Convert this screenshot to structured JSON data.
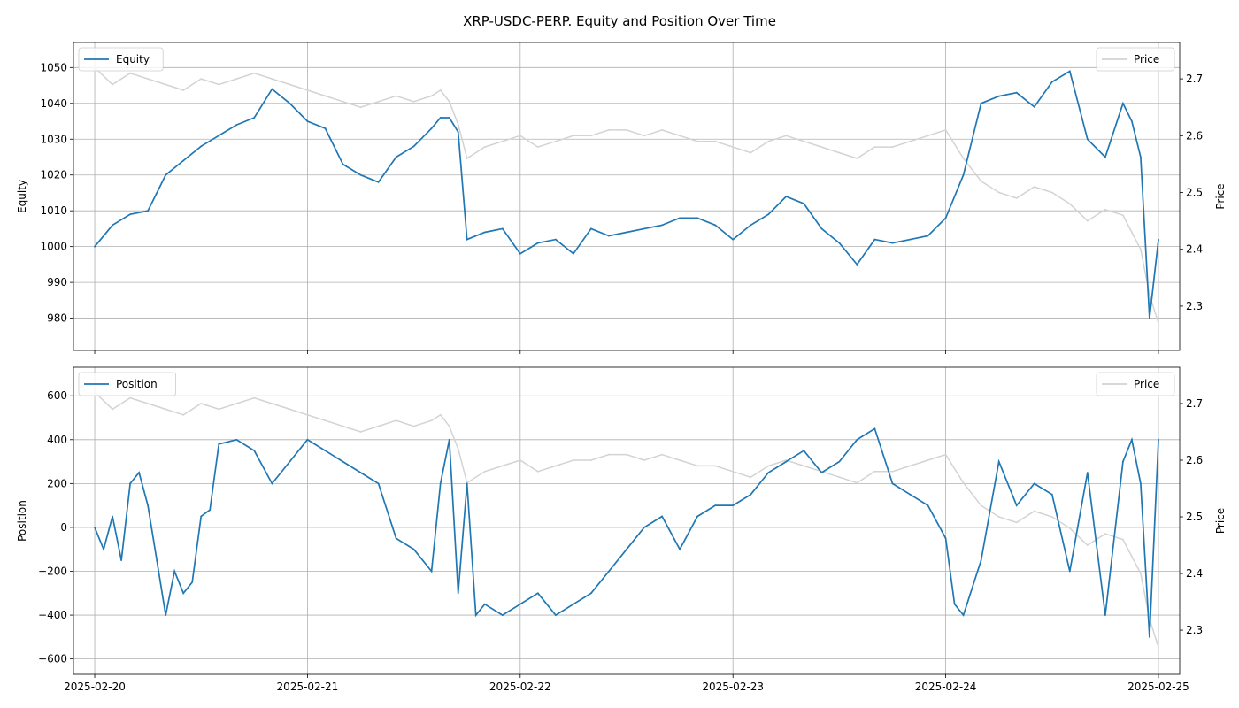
{
  "figure": {
    "title": "XRP-USDC-PERP. Equity and Position Over Time"
  },
  "colors": {
    "equity": "#1f77b4",
    "position": "#1f77b4",
    "price": "#d3d3d3",
    "grid": "#b0b0b0"
  },
  "chart_data": [
    {
      "type": "line",
      "ylabel": "Equity",
      "ylabel_right": "Price",
      "legend_left": "top-left",
      "legend_right": "top-right",
      "grid": true,
      "xlim": [
        "2025-02-19T21:36",
        "2025-02-25T02:24"
      ],
      "x_ticks": [
        "2025-02-20",
        "2025-02-21",
        "2025-02-22",
        "2025-02-23",
        "2025-02-24",
        "2025-02-25"
      ],
      "ylim": [
        971,
        1057
      ],
      "y_ticks": [
        980,
        990,
        1000,
        1010,
        1020,
        1030,
        1040,
        1050
      ],
      "y2lim": [
        2.222,
        2.764
      ],
      "y2_ticks": [
        2.3,
        2.4,
        2.5,
        2.6,
        2.7
      ],
      "series": [
        {
          "name": "Equity",
          "axis": "left",
          "x": [
            "2025-02-20T00:00",
            "2025-02-20T02:00",
            "2025-02-20T04:00",
            "2025-02-20T06:00",
            "2025-02-20T08:00",
            "2025-02-20T10:00",
            "2025-02-20T12:00",
            "2025-02-20T14:00",
            "2025-02-20T16:00",
            "2025-02-20T18:00",
            "2025-02-20T20:00",
            "2025-02-20T22:00",
            "2025-02-21T00:00",
            "2025-02-21T02:00",
            "2025-02-21T04:00",
            "2025-02-21T06:00",
            "2025-02-21T08:00",
            "2025-02-21T10:00",
            "2025-02-21T12:00",
            "2025-02-21T14:00",
            "2025-02-21T15:00",
            "2025-02-21T16:00",
            "2025-02-21T17:00",
            "2025-02-21T18:00",
            "2025-02-21T20:00",
            "2025-02-21T22:00",
            "2025-02-22T00:00",
            "2025-02-22T02:00",
            "2025-02-22T04:00",
            "2025-02-22T06:00",
            "2025-02-22T08:00",
            "2025-02-22T10:00",
            "2025-02-22T12:00",
            "2025-02-22T14:00",
            "2025-02-22T16:00",
            "2025-02-22T18:00",
            "2025-02-22T20:00",
            "2025-02-22T22:00",
            "2025-02-23T00:00",
            "2025-02-23T02:00",
            "2025-02-23T04:00",
            "2025-02-23T06:00",
            "2025-02-23T08:00",
            "2025-02-23T10:00",
            "2025-02-23T12:00",
            "2025-02-23T14:00",
            "2025-02-23T16:00",
            "2025-02-23T18:00",
            "2025-02-23T20:00",
            "2025-02-23T22:00",
            "2025-02-24T00:00",
            "2025-02-24T02:00",
            "2025-02-24T04:00",
            "2025-02-24T06:00",
            "2025-02-24T08:00",
            "2025-02-24T10:00",
            "2025-02-24T12:00",
            "2025-02-24T14:00",
            "2025-02-24T16:00",
            "2025-02-24T18:00",
            "2025-02-24T20:00",
            "2025-02-24T21:00",
            "2025-02-24T22:00",
            "2025-02-24T23:00",
            "2025-02-25T00:00"
          ],
          "values": [
            1000,
            1006,
            1009,
            1010,
            1020,
            1024,
            1028,
            1031,
            1034,
            1036,
            1044,
            1040,
            1035,
            1033,
            1023,
            1020,
            1018,
            1025,
            1028,
            1033,
            1036,
            1036,
            1032,
            1002,
            1004,
            1005,
            998,
            1001,
            1002,
            998,
            1005,
            1003,
            1004,
            1005,
            1006,
            1008,
            1008,
            1006,
            1002,
            1006,
            1009,
            1014,
            1012,
            1005,
            1001,
            995,
            1002,
            1001,
            1002,
            1003,
            1008,
            1020,
            1040,
            1042,
            1043,
            1039,
            1046,
            1049,
            1030,
            1025,
            1040,
            1035,
            1025,
            980,
            1002
          ]
        },
        {
          "name": "Price",
          "axis": "right",
          "x": [
            "2025-02-20T00:00",
            "2025-02-20T02:00",
            "2025-02-20T04:00",
            "2025-02-20T06:00",
            "2025-02-20T08:00",
            "2025-02-20T10:00",
            "2025-02-20T12:00",
            "2025-02-20T14:00",
            "2025-02-20T16:00",
            "2025-02-20T18:00",
            "2025-02-20T20:00",
            "2025-02-20T22:00",
            "2025-02-21T00:00",
            "2025-02-21T02:00",
            "2025-02-21T04:00",
            "2025-02-21T06:00",
            "2025-02-21T08:00",
            "2025-02-21T10:00",
            "2025-02-21T12:00",
            "2025-02-21T14:00",
            "2025-02-21T15:00",
            "2025-02-21T16:00",
            "2025-02-21T17:00",
            "2025-02-21T18:00",
            "2025-02-21T20:00",
            "2025-02-21T22:00",
            "2025-02-22T00:00",
            "2025-02-22T02:00",
            "2025-02-22T04:00",
            "2025-02-22T06:00",
            "2025-02-22T08:00",
            "2025-02-22T10:00",
            "2025-02-22T12:00",
            "2025-02-22T14:00",
            "2025-02-22T16:00",
            "2025-02-22T18:00",
            "2025-02-22T20:00",
            "2025-02-22T22:00",
            "2025-02-23T00:00",
            "2025-02-23T02:00",
            "2025-02-23T04:00",
            "2025-02-23T06:00",
            "2025-02-23T08:00",
            "2025-02-23T10:00",
            "2025-02-23T12:00",
            "2025-02-23T14:00",
            "2025-02-23T16:00",
            "2025-02-23T18:00",
            "2025-02-23T20:00",
            "2025-02-23T22:00",
            "2025-02-24T00:00",
            "2025-02-24T02:00",
            "2025-02-24T04:00",
            "2025-02-24T06:00",
            "2025-02-24T08:00",
            "2025-02-24T10:00",
            "2025-02-24T12:00",
            "2025-02-24T14:00",
            "2025-02-24T16:00",
            "2025-02-24T18:00",
            "2025-02-24T20:00",
            "2025-02-24T21:00",
            "2025-02-24T22:00",
            "2025-02-24T23:00",
            "2025-02-25T00:00"
          ],
          "values": [
            2.72,
            2.69,
            2.71,
            2.7,
            2.69,
            2.68,
            2.7,
            2.69,
            2.7,
            2.71,
            2.7,
            2.69,
            2.68,
            2.67,
            2.66,
            2.65,
            2.66,
            2.67,
            2.66,
            2.67,
            2.68,
            2.66,
            2.62,
            2.56,
            2.58,
            2.59,
            2.6,
            2.58,
            2.59,
            2.6,
            2.6,
            2.61,
            2.61,
            2.6,
            2.61,
            2.6,
            2.59,
            2.59,
            2.58,
            2.57,
            2.59,
            2.6,
            2.59,
            2.58,
            2.57,
            2.56,
            2.58,
            2.58,
            2.59,
            2.6,
            2.61,
            2.56,
            2.52,
            2.5,
            2.49,
            2.51,
            2.5,
            2.48,
            2.45,
            2.47,
            2.46,
            2.43,
            2.4,
            2.32,
            2.27
          ]
        }
      ]
    },
    {
      "type": "line",
      "ylabel": "Position",
      "ylabel_right": "Price",
      "legend_left": "top-left",
      "legend_right": "top-right",
      "grid": true,
      "xlim": [
        "2025-02-19T21:36",
        "2025-02-25T02:24"
      ],
      "x_ticks": [
        "2025-02-20",
        "2025-02-21",
        "2025-02-22",
        "2025-02-23",
        "2025-02-24",
        "2025-02-25"
      ],
      "ylim": [
        -670,
        730
      ],
      "y_ticks": [
        -600,
        -400,
        -200,
        0,
        200,
        400,
        600
      ],
      "y2lim": [
        2.222,
        2.764
      ],
      "y2_ticks": [
        2.3,
        2.4,
        2.5,
        2.6,
        2.7
      ],
      "series": [
        {
          "name": "Position",
          "axis": "left",
          "x": [
            "2025-02-20T00:00",
            "2025-02-20T01:00",
            "2025-02-20T02:00",
            "2025-02-20T03:00",
            "2025-02-20T04:00",
            "2025-02-20T05:00",
            "2025-02-20T06:00",
            "2025-02-20T07:00",
            "2025-02-20T08:00",
            "2025-02-20T09:00",
            "2025-02-20T10:00",
            "2025-02-20T11:00",
            "2025-02-20T12:00",
            "2025-02-20T13:00",
            "2025-02-20T14:00",
            "2025-02-20T16:00",
            "2025-02-20T18:00",
            "2025-02-20T20:00",
            "2025-02-20T22:00",
            "2025-02-21T00:00",
            "2025-02-21T02:00",
            "2025-02-21T04:00",
            "2025-02-21T06:00",
            "2025-02-21T08:00",
            "2025-02-21T10:00",
            "2025-02-21T12:00",
            "2025-02-21T14:00",
            "2025-02-21T15:00",
            "2025-02-21T16:00",
            "2025-02-21T17:00",
            "2025-02-21T18:00",
            "2025-02-21T19:00",
            "2025-02-21T20:00",
            "2025-02-21T22:00",
            "2025-02-22T00:00",
            "2025-02-22T02:00",
            "2025-02-22T04:00",
            "2025-02-22T06:00",
            "2025-02-22T08:00",
            "2025-02-22T10:00",
            "2025-02-22T12:00",
            "2025-02-22T14:00",
            "2025-02-22T16:00",
            "2025-02-22T18:00",
            "2025-02-22T20:00",
            "2025-02-22T22:00",
            "2025-02-23T00:00",
            "2025-02-23T02:00",
            "2025-02-23T04:00",
            "2025-02-23T06:00",
            "2025-02-23T08:00",
            "2025-02-23T10:00",
            "2025-02-23T12:00",
            "2025-02-23T14:00",
            "2025-02-23T16:00",
            "2025-02-23T18:00",
            "2025-02-23T20:00",
            "2025-02-23T22:00",
            "2025-02-24T00:00",
            "2025-02-24T01:00",
            "2025-02-24T02:00",
            "2025-02-24T04:00",
            "2025-02-24T06:00",
            "2025-02-24T08:00",
            "2025-02-24T10:00",
            "2025-02-24T12:00",
            "2025-02-24T14:00",
            "2025-02-24T16:00",
            "2025-02-24T18:00",
            "2025-02-24T20:00",
            "2025-02-24T21:00",
            "2025-02-24T22:00",
            "2025-02-24T23:00",
            "2025-02-25T00:00"
          ],
          "values": [
            0,
            -100,
            50,
            -150,
            200,
            250,
            100,
            -150,
            -400,
            -200,
            -300,
            -250,
            50,
            80,
            380,
            400,
            350,
            200,
            300,
            400,
            350,
            300,
            250,
            200,
            -50,
            -100,
            -200,
            200,
            400,
            -300,
            200,
            -400,
            -350,
            -400,
            -350,
            -300,
            -400,
            -350,
            -300,
            -200,
            -100,
            0,
            50,
            -100,
            50,
            100,
            100,
            150,
            250,
            300,
            350,
            250,
            300,
            400,
            450,
            200,
            150,
            100,
            -50,
            -350,
            -400,
            -150,
            300,
            100,
            200,
            150,
            -200,
            250,
            -400,
            300,
            400,
            200,
            -500,
            400
          ]
        },
        {
          "name": "Price",
          "axis": "right",
          "x": [
            "2025-02-20T00:00",
            "2025-02-20T02:00",
            "2025-02-20T04:00",
            "2025-02-20T06:00",
            "2025-02-20T08:00",
            "2025-02-20T10:00",
            "2025-02-20T12:00",
            "2025-02-20T14:00",
            "2025-02-20T16:00",
            "2025-02-20T18:00",
            "2025-02-20T20:00",
            "2025-02-20T22:00",
            "2025-02-21T00:00",
            "2025-02-21T02:00",
            "2025-02-21T04:00",
            "2025-02-21T06:00",
            "2025-02-21T08:00",
            "2025-02-21T10:00",
            "2025-02-21T12:00",
            "2025-02-21T14:00",
            "2025-02-21T15:00",
            "2025-02-21T16:00",
            "2025-02-21T17:00",
            "2025-02-21T18:00",
            "2025-02-21T20:00",
            "2025-02-21T22:00",
            "2025-02-22T00:00",
            "2025-02-22T02:00",
            "2025-02-22T04:00",
            "2025-02-22T06:00",
            "2025-02-22T08:00",
            "2025-02-22T10:00",
            "2025-02-22T12:00",
            "2025-02-22T14:00",
            "2025-02-22T16:00",
            "2025-02-22T18:00",
            "2025-02-22T20:00",
            "2025-02-22T22:00",
            "2025-02-23T00:00",
            "2025-02-23T02:00",
            "2025-02-23T04:00",
            "2025-02-23T06:00",
            "2025-02-23T08:00",
            "2025-02-23T10:00",
            "2025-02-23T12:00",
            "2025-02-23T14:00",
            "2025-02-23T16:00",
            "2025-02-23T18:00",
            "2025-02-23T20:00",
            "2025-02-23T22:00",
            "2025-02-24T00:00",
            "2025-02-24T02:00",
            "2025-02-24T04:00",
            "2025-02-24T06:00",
            "2025-02-24T08:00",
            "2025-02-24T10:00",
            "2025-02-24T12:00",
            "2025-02-24T14:00",
            "2025-02-24T16:00",
            "2025-02-24T18:00",
            "2025-02-24T20:00",
            "2025-02-24T21:00",
            "2025-02-24T22:00",
            "2025-02-24T23:00",
            "2025-02-25T00:00"
          ],
          "values": [
            2.72,
            2.69,
            2.71,
            2.7,
            2.69,
            2.68,
            2.7,
            2.69,
            2.7,
            2.71,
            2.7,
            2.69,
            2.68,
            2.67,
            2.66,
            2.65,
            2.66,
            2.67,
            2.66,
            2.67,
            2.68,
            2.66,
            2.62,
            2.56,
            2.58,
            2.59,
            2.6,
            2.58,
            2.59,
            2.6,
            2.6,
            2.61,
            2.61,
            2.6,
            2.61,
            2.6,
            2.59,
            2.59,
            2.58,
            2.57,
            2.59,
            2.6,
            2.59,
            2.58,
            2.57,
            2.56,
            2.58,
            2.58,
            2.59,
            2.6,
            2.61,
            2.56,
            2.52,
            2.5,
            2.49,
            2.51,
            2.5,
            2.48,
            2.45,
            2.47,
            2.46,
            2.43,
            2.4,
            2.32,
            2.27
          ]
        }
      ]
    }
  ]
}
